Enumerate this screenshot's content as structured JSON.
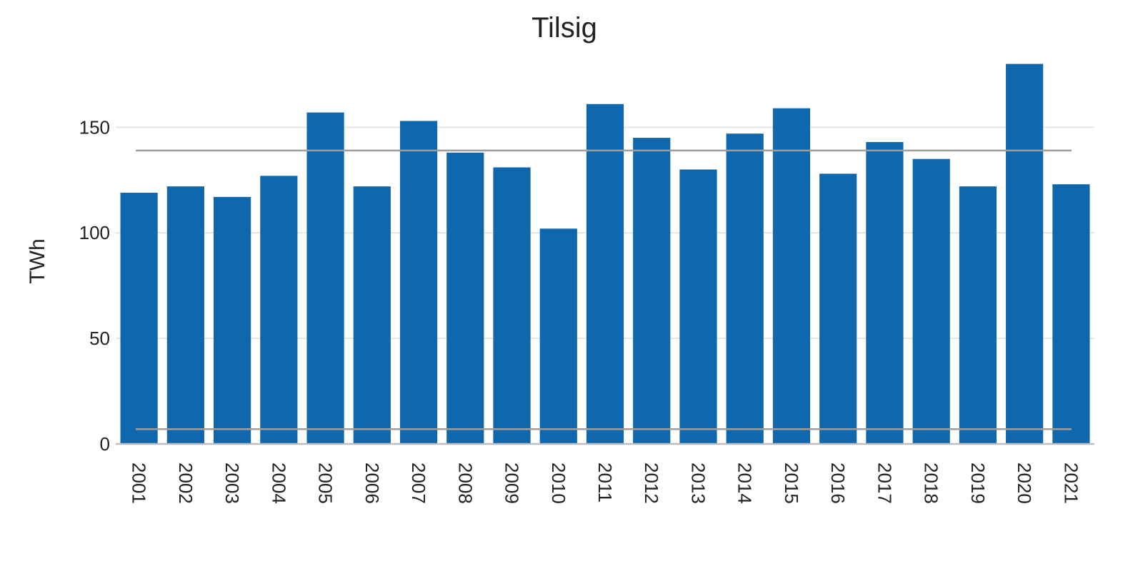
{
  "chart_data": {
    "type": "bar",
    "title": "Tilsig",
    "xlabel": "",
    "ylabel": "TWh",
    "categories": [
      "2001",
      "2002",
      "2003",
      "2004",
      "2005",
      "2006",
      "2007",
      "2008",
      "2009",
      "2010",
      "2011",
      "2012",
      "2013",
      "2014",
      "2015",
      "2016",
      "2017",
      "2018",
      "2019",
      "2020",
      "2021"
    ],
    "values": [
      119,
      122,
      117,
      127,
      157,
      122,
      153,
      138,
      131,
      102,
      161,
      145,
      130,
      147,
      159,
      128,
      143,
      135,
      122,
      180,
      123
    ],
    "ylim": [
      0,
      190
    ],
    "yticks": [
      0,
      50,
      100,
      150
    ],
    "reference_lines": [
      139,
      7
    ],
    "grid": true,
    "colors": {
      "bar": "#0f67ad",
      "reference_line": "#9e9e9e",
      "grid": "#e6e6e6",
      "axis": "#bdbdbd"
    }
  }
}
